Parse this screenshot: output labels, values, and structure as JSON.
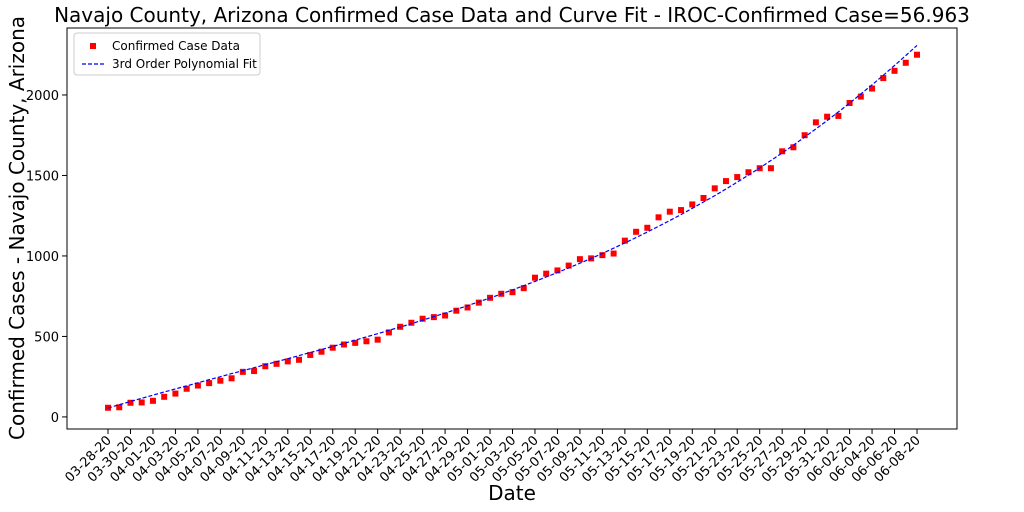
{
  "chart_data": {
    "type": "scatter",
    "title": "Navajo County, Arizona Confirmed Case Data and Curve Fit - IROC-Confirmed Case=56.963",
    "x_label": "Date",
    "y_label": "Confirmed Cases - Navajo County, Arizona",
    "categories": [
      "03-28-20",
      null,
      "03-30-20",
      null,
      "04-01-20",
      null,
      "04-03-20",
      null,
      "04-05-20",
      null,
      "04-07-20",
      null,
      "04-09-20",
      null,
      "04-11-20",
      null,
      "04-13-20",
      null,
      "04-15-20",
      null,
      "04-17-20",
      null,
      "04-19-20",
      null,
      "04-21-20",
      null,
      "04-23-20",
      null,
      "04-25-20",
      null,
      "04-27-20",
      null,
      "04-29-20",
      null,
      "05-01-20",
      null,
      "05-03-20",
      null,
      "05-05-20",
      null,
      "05-07-20",
      null,
      "05-09-20",
      null,
      "05-11-20",
      null,
      "05-13-20",
      null,
      "05-15-20",
      null,
      "05-17-20",
      null,
      "05-19-20",
      null,
      "05-21-20",
      null,
      "05-23-20",
      null,
      "05-25-20",
      null,
      "05-27-20",
      null,
      "05-29-20",
      null,
      "05-31-20",
      null,
      "06-02-20",
      null,
      "06-04-20",
      null,
      "06-06-20",
      null,
      "06-08-20"
    ],
    "series": [
      {
        "name": "Confirmed Case Data",
        "kind": "scatter",
        "color": "#ff0000",
        "values": [
          57,
          60,
          88,
          90,
          100,
          125,
          145,
          175,
          195,
          210,
          225,
          240,
          280,
          285,
          315,
          330,
          345,
          355,
          385,
          405,
          430,
          450,
          460,
          470,
          480,
          525,
          560,
          585,
          610,
          620,
          630,
          660,
          680,
          710,
          740,
          765,
          775,
          800,
          865,
          890,
          910,
          940,
          980,
          985,
          1005,
          1015,
          1095,
          1150,
          1175,
          1240,
          1275,
          1285,
          1320,
          1360,
          1420,
          1465,
          1490,
          1520,
          1545,
          1545,
          1650,
          1675,
          1750,
          1830,
          1865,
          1870,
          1950,
          1990,
          2040,
          2105,
          2150,
          2200,
          2250
        ]
      },
      {
        "name": "3rd Order Polynomial Fit",
        "kind": "line",
        "color": "#0000ff",
        "values": [
          55,
          76,
          96,
          116,
          135,
          155,
          174,
          193,
          212,
          231,
          250,
          269,
          287,
          306,
          325,
          343,
          362,
          381,
          400,
          419,
          438,
          457,
          477,
          497,
          517,
          538,
          558,
          579,
          601,
          623,
          645,
          668,
          691,
          715,
          739,
          764,
          789,
          815,
          842,
          869,
          897,
          926,
          955,
          985,
          1016,
          1048,
          1081,
          1114,
          1149,
          1184,
          1220,
          1257,
          1296,
          1335,
          1375,
          1416,
          1459,
          1502,
          1547,
          1593,
          1640,
          1688,
          1738,
          1789,
          1841,
          1894,
          1949,
          2006,
          2063,
          2122,
          2183,
          2245,
          2308
        ]
      }
    ],
    "ylim": [
      -75,
      2416
    ],
    "yticks": [
      0,
      500,
      1000,
      1500,
      2000
    ],
    "legend": "upper left"
  }
}
